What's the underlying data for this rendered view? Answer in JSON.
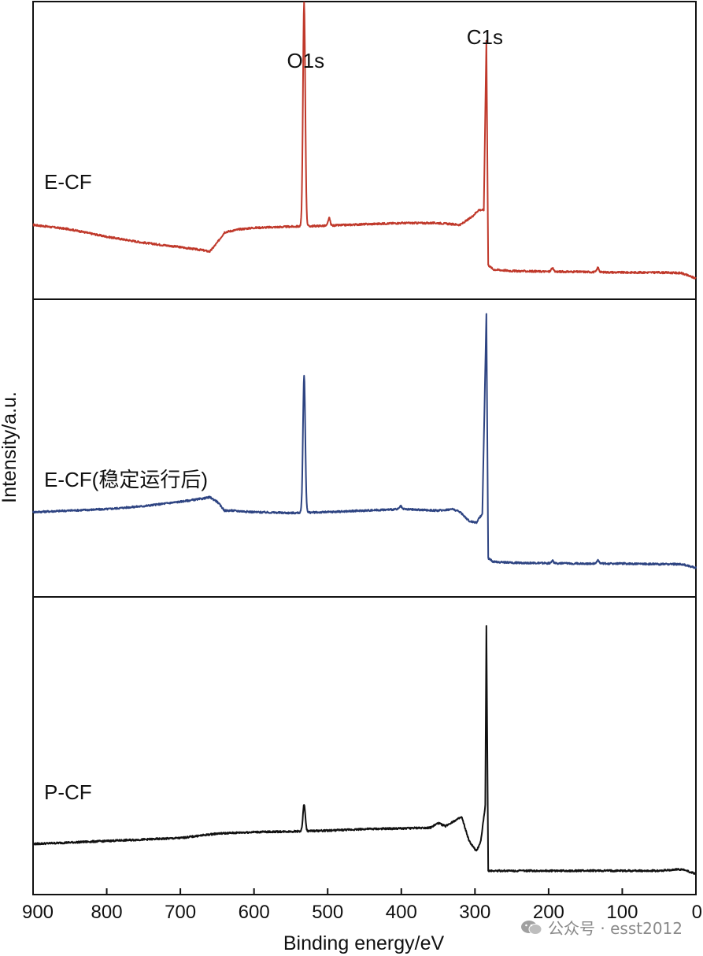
{
  "chart_data": {
    "type": "line",
    "xlabel": "Binding energy/eV",
    "ylabel": "Intensity/a.u.",
    "xlim": [
      900,
      0
    ],
    "xticks": [
      900,
      800,
      700,
      600,
      500,
      400,
      300,
      200,
      100,
      0
    ],
    "peak_annotations": [
      {
        "text": "O1s",
        "x": 532
      },
      {
        "text": "C1s",
        "x": 284.5
      }
    ],
    "series": [
      {
        "name": "E-CF",
        "color": "#c0392b",
        "baseline": [
          [
            900,
            0.25
          ],
          [
            850,
            0.235
          ],
          [
            800,
            0.21
          ],
          [
            750,
            0.19
          ],
          [
            700,
            0.175
          ],
          [
            670,
            0.165
          ],
          [
            660,
            0.16
          ],
          [
            650,
            0.19
          ],
          [
            640,
            0.225
          ],
          [
            630,
            0.23
          ],
          [
            620,
            0.235
          ],
          [
            600,
            0.24
          ],
          [
            550,
            0.244
          ],
          [
            500,
            0.247
          ],
          [
            450,
            0.252
          ],
          [
            400,
            0.256
          ],
          [
            350,
            0.256
          ],
          [
            320,
            0.25
          ],
          [
            305,
            0.275
          ],
          [
            295,
            0.3
          ],
          [
            288,
            0.3
          ],
          [
            284.5,
            0.87
          ],
          [
            282,
            0.115
          ],
          [
            275,
            0.1
          ],
          [
            250,
            0.095
          ],
          [
            200,
            0.093
          ],
          [
            150,
            0.092
          ],
          [
            100,
            0.09
          ],
          [
            50,
            0.09
          ],
          [
            20,
            0.088
          ],
          [
            0,
            0.07
          ]
        ],
        "peaks": [
          {
            "x": 532,
            "h": 0.75,
            "w": 2.2
          },
          {
            "x": 284.5,
            "h": 0.0,
            "w": 1.0
          },
          {
            "x": 498,
            "h": 0.025,
            "w": 2.0
          },
          {
            "x": 195,
            "h": 0.012,
            "w": 2.0
          },
          {
            "x": 133,
            "h": 0.015,
            "w": 2.0
          }
        ]
      },
      {
        "name": "E-CF(稳定运行后)",
        "color": "#2e4482",
        "baseline": [
          [
            900,
            0.285
          ],
          [
            850,
            0.29
          ],
          [
            800,
            0.295
          ],
          [
            750,
            0.305
          ],
          [
            700,
            0.32
          ],
          [
            670,
            0.33
          ],
          [
            660,
            0.335
          ],
          [
            650,
            0.32
          ],
          [
            640,
            0.29
          ],
          [
            630,
            0.29
          ],
          [
            600,
            0.285
          ],
          [
            550,
            0.282
          ],
          [
            500,
            0.285
          ],
          [
            450,
            0.29
          ],
          [
            400,
            0.295
          ],
          [
            350,
            0.29
          ],
          [
            330,
            0.295
          ],
          [
            320,
            0.285
          ],
          [
            308,
            0.255
          ],
          [
            298,
            0.25
          ],
          [
            290,
            0.28
          ],
          [
            284.5,
            0.95
          ],
          [
            282,
            0.13
          ],
          [
            275,
            0.118
          ],
          [
            250,
            0.115
          ],
          [
            200,
            0.113
          ],
          [
            150,
            0.112
          ],
          [
            100,
            0.112
          ],
          [
            50,
            0.11
          ],
          [
            20,
            0.11
          ],
          [
            0,
            0.098
          ]
        ],
        "peaks": [
          {
            "x": 532,
            "h": 0.46,
            "w": 2.2
          },
          {
            "x": 401,
            "h": 0.01,
            "w": 2.0
          },
          {
            "x": 195,
            "h": 0.01,
            "w": 2.0
          },
          {
            "x": 133,
            "h": 0.012,
            "w": 2.0
          }
        ]
      },
      {
        "name": "P-CF",
        "color": "#111111",
        "baseline": [
          [
            900,
            0.17
          ],
          [
            850,
            0.175
          ],
          [
            800,
            0.18
          ],
          [
            750,
            0.185
          ],
          [
            700,
            0.19
          ],
          [
            650,
            0.205
          ],
          [
            600,
            0.21
          ],
          [
            550,
            0.212
          ],
          [
            500,
            0.215
          ],
          [
            450,
            0.22
          ],
          [
            400,
            0.222
          ],
          [
            360,
            0.225
          ],
          [
            350,
            0.24
          ],
          [
            340,
            0.23
          ],
          [
            330,
            0.245
          ],
          [
            318,
            0.26
          ],
          [
            308,
            0.18
          ],
          [
            298,
            0.145
          ],
          [
            292,
            0.18
          ],
          [
            286,
            0.3
          ],
          [
            284.5,
            0.9
          ],
          [
            282,
            0.08
          ],
          [
            275,
            0.08
          ],
          [
            250,
            0.08
          ],
          [
            200,
            0.08
          ],
          [
            150,
            0.08
          ],
          [
            100,
            0.08
          ],
          [
            50,
            0.08
          ],
          [
            20,
            0.085
          ],
          [
            0,
            0.07
          ]
        ],
        "peaks": [
          {
            "x": 532,
            "h": 0.09,
            "w": 2.2
          }
        ]
      }
    ]
  },
  "watermark": {
    "text": "公众号 · esst2012",
    "icon": "wechat-icon"
  }
}
